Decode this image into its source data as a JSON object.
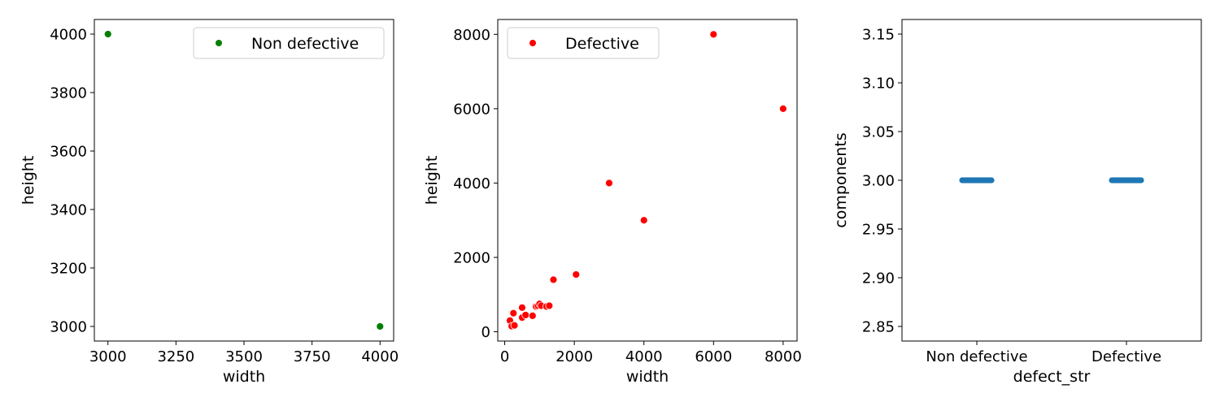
{
  "chart_data": [
    {
      "type": "scatter",
      "xlabel": "width",
      "ylabel": "height",
      "xlim": [
        2950,
        4050
      ],
      "ylim": [
        2950,
        4050
      ],
      "xticks": [
        "3000",
        "3250",
        "3500",
        "3750",
        "4000"
      ],
      "yticks": [
        "3000",
        "3200",
        "3400",
        "3600",
        "3800",
        "4000"
      ],
      "legend": {
        "label": "Non defective",
        "position": "top-right"
      },
      "series": [
        {
          "name": "Non defective",
          "color": "#008000",
          "points": [
            {
              "x": 3000,
              "y": 4000
            },
            {
              "x": 4000,
              "y": 3000
            }
          ]
        }
      ]
    },
    {
      "type": "scatter",
      "xlabel": "width",
      "ylabel": "height",
      "xlim": [
        -200,
        8400
      ],
      "ylim": [
        -250,
        8400
      ],
      "xticks": [
        "0",
        "2000",
        "4000",
        "6000",
        "8000"
      ],
      "yticks": [
        "0",
        "2000",
        "4000",
        "6000",
        "8000"
      ],
      "legend": {
        "label": "Defective",
        "position": "top-left"
      },
      "series": [
        {
          "name": "Defective",
          "color": "#ff0000",
          "points": [
            {
              "x": 150,
              "y": 300
            },
            {
              "x": 200,
              "y": 150
            },
            {
              "x": 250,
              "y": 500
            },
            {
              "x": 280,
              "y": 170
            },
            {
              "x": 500,
              "y": 650
            },
            {
              "x": 500,
              "y": 380
            },
            {
              "x": 600,
              "y": 450
            },
            {
              "x": 800,
              "y": 430
            },
            {
              "x": 900,
              "y": 680
            },
            {
              "x": 950,
              "y": 700
            },
            {
              "x": 1000,
              "y": 750
            },
            {
              "x": 1050,
              "y": 700
            },
            {
              "x": 1200,
              "y": 680
            },
            {
              "x": 1280,
              "y": 700
            },
            {
              "x": 1400,
              "y": 1400
            },
            {
              "x": 2050,
              "y": 1540
            },
            {
              "x": 3000,
              "y": 4000
            },
            {
              "x": 4000,
              "y": 3000
            },
            {
              "x": 6000,
              "y": 8000
            },
            {
              "x": 8000,
              "y": 6000
            }
          ]
        }
      ]
    },
    {
      "type": "strip",
      "xlabel": "defect_str",
      "ylabel": "components",
      "ylim": [
        2.835,
        3.165
      ],
      "categories": [
        "Non defective",
        "Defective"
      ],
      "yticks": [
        "2.85",
        "2.90",
        "2.95",
        "3.00",
        "3.05",
        "3.10",
        "3.15"
      ],
      "series": [
        {
          "color": "#1f77b4",
          "values": [
            3.0,
            3.0
          ]
        }
      ]
    }
  ]
}
